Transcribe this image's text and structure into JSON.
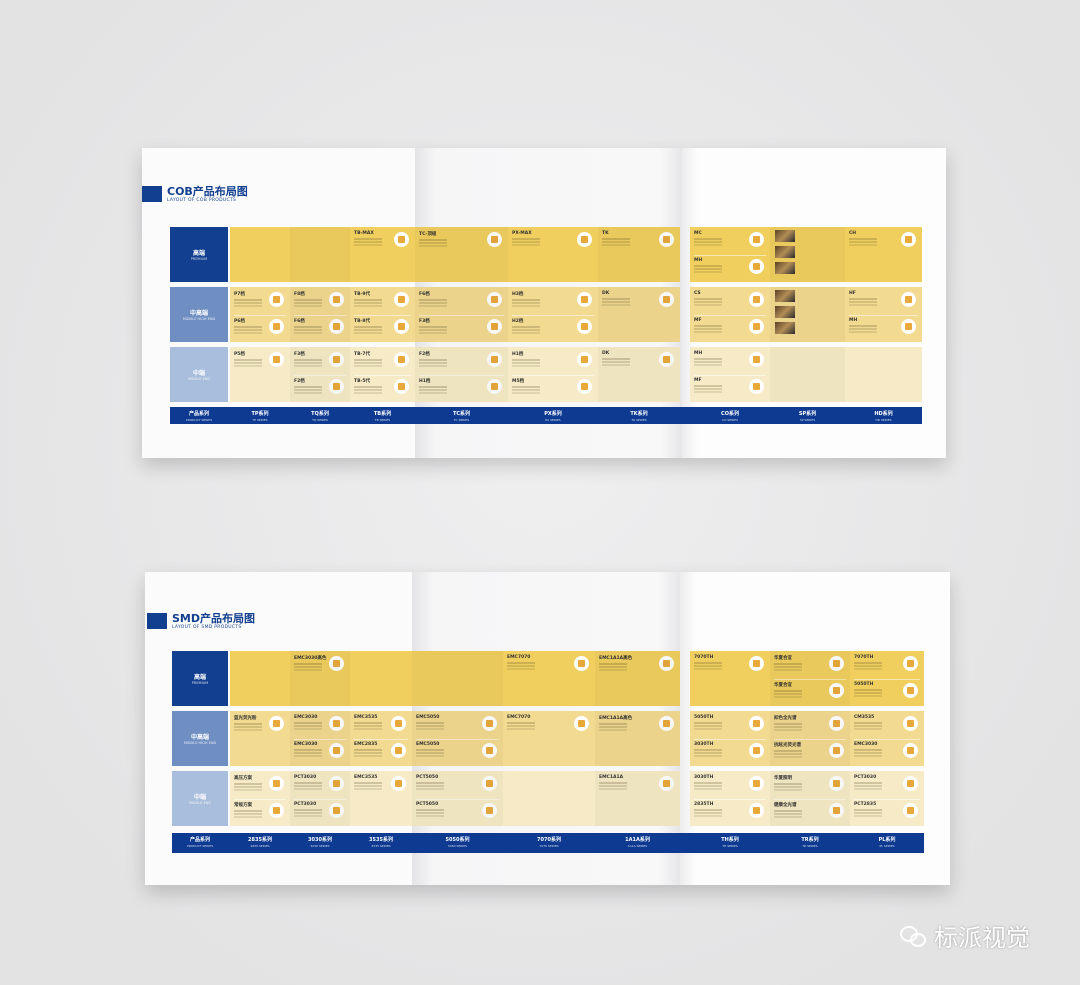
{
  "colors": {
    "brand_blue": "#123f8f",
    "premium": "#f0cf5e",
    "middle_high": "#f2da90",
    "middle": "#f6ebc6"
  },
  "cob": {
    "title": "COB产品布局图",
    "subtitle": "LAYOUT OF COB PRODUCTS",
    "rows": [
      {
        "label": "高端",
        "sub": "PREMIUM"
      },
      {
        "label": "中高端",
        "sub": "MIDDLE HIGH END"
      },
      {
        "label": "中端",
        "sub": "MIDDLE END"
      }
    ],
    "series_header": {
      "label": "产品系列",
      "sub": "PRODUCT SERIES"
    },
    "series": [
      {
        "label": "TP系列",
        "sub": "TP SERIES"
      },
      {
        "label": "TQ系列",
        "sub": "TQ SERIES"
      },
      {
        "label": "TB系列",
        "sub": "TB SERIES"
      },
      {
        "label": "TC系列",
        "sub": "TC SERIES"
      },
      {
        "label": "PX系列",
        "sub": "PX SERIES"
      },
      {
        "label": "TK系列",
        "sub": "TK SERIES"
      },
      {
        "label": "CO系列",
        "sub": "CO SERIES"
      },
      {
        "label": "SP系列",
        "sub": "SP SERIES"
      },
      {
        "label": "HD系列",
        "sub": "HD SERIES"
      }
    ],
    "cells": [
      [
        [],
        [],
        [
          "TB-MAX"
        ],
        [
          "TC-顶级"
        ],
        [
          "PX-MAX"
        ],
        [
          "TK"
        ],
        [
          "MC",
          "MH"
        ],
        [
          "SP"
        ],
        [
          "CH"
        ]
      ],
      [
        [
          "P7档",
          "P6档"
        ],
        [
          "F8档",
          "F6档"
        ],
        [
          "TB-9代",
          "TB-8代"
        ],
        [
          "F6档",
          "F3档"
        ],
        [
          "H3档",
          "H2档"
        ],
        [
          "DK"
        ],
        [
          "CS",
          "MF"
        ],
        [
          "SP"
        ],
        [
          "HF",
          "MH"
        ]
      ],
      [
        [
          "P5档"
        ],
        [
          "F3档",
          "F2档"
        ],
        [
          "TB-7代",
          "TB-5代"
        ],
        [
          "F2档",
          "H1档"
        ],
        [
          "H1档",
          "M5档"
        ],
        [
          "DK"
        ],
        [
          "MH",
          "MF"
        ],
        [],
        []
      ]
    ]
  },
  "smd": {
    "title": "SMD产品布局图",
    "subtitle": "LAYOUT OF SMD PRODUCTS",
    "rows": [
      {
        "label": "高端",
        "sub": "PREMIUM"
      },
      {
        "label": "中高端",
        "sub": "MIDDLE HIGH END"
      },
      {
        "label": "中端",
        "sub": "MIDDLE END"
      }
    ],
    "series_header": {
      "label": "产品系列",
      "sub": "PRODUCT SERIES"
    },
    "series": [
      {
        "label": "2835系列",
        "sub": "2835 SERIES"
      },
      {
        "label": "3030系列",
        "sub": "3030 SERIES"
      },
      {
        "label": "3535系列",
        "sub": "3535 SERIES"
      },
      {
        "label": "5050系列",
        "sub": "5050 SERIES"
      },
      {
        "label": "7070系列",
        "sub": "7070 SERIES"
      },
      {
        "label": "1A1A系列",
        "sub": "1A1A SERIES"
      },
      {
        "label": "TH系列",
        "sub": "TH SERIES"
      },
      {
        "label": "TR系列",
        "sub": "TR SERIES"
      },
      {
        "label": "PL系列",
        "sub": "PL SERIES"
      }
    ],
    "cells": [
      [
        [],
        [
          "EMC3030高色"
        ],
        [],
        [],
        [
          "EMC7070"
        ],
        [
          "EMC1A1A高色"
        ],
        [
          "7070TH"
        ],
        [
          "华夏合宜",
          "华夏合宜"
        ],
        [
          "7070TH",
          "5050TH"
        ]
      ],
      [
        [
          "蓝光荧光粉"
        ],
        [
          "EMC3030",
          "EMC3030"
        ],
        [
          "EMC3535",
          "EMC2835"
        ],
        [
          "EMC5050",
          "EMC5050"
        ],
        [
          "EMC7070"
        ],
        [
          "EMC1A1A高色"
        ],
        [
          "5050TH",
          "3030TH"
        ],
        [
          "抑色全光谱",
          "抗眩光荧光谱"
        ],
        [
          "CM3535",
          "EMC3030"
        ]
      ],
      [
        [
          "高压方案",
          "常规方案"
        ],
        [
          "PCT3030",
          "PCT3030"
        ],
        [
          "EMC3535"
        ],
        [
          "PCT5050",
          "PCT5050"
        ],
        [],
        [
          "EMC1A1A"
        ],
        [
          "3030TH",
          "2835TH"
        ],
        [
          "华夏照明",
          "健康全光谱"
        ],
        [
          "PCT3030",
          "PCT2835"
        ]
      ]
    ]
  },
  "watermark": {
    "text": "标派视觉",
    "icon": "wechat-icon"
  }
}
